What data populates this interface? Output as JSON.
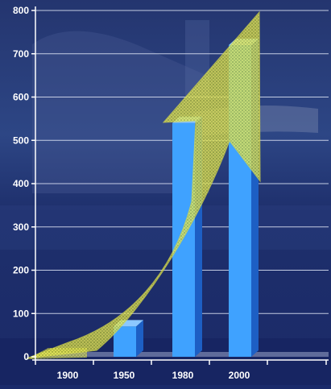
{
  "chart_data": {
    "type": "bar",
    "categories": [
      "1900",
      "1950",
      "1980",
      "2000"
    ],
    "values": [
      0,
      70,
      540,
      720
    ],
    "y_ticks": [
      0,
      100,
      200,
      300,
      400,
      500,
      600,
      700,
      800
    ],
    "ylim": [
      0,
      800
    ],
    "grid": true,
    "title": "",
    "xlabel": "",
    "ylabel": "",
    "colors": {
      "bar_face": "#3fa2ff",
      "bar_side": "#1d5fc4",
      "bar_top": "#8cc8ff",
      "arrow": "#e8e84a",
      "axis_text": "#ffffff",
      "background": "#1a2a6a"
    }
  }
}
